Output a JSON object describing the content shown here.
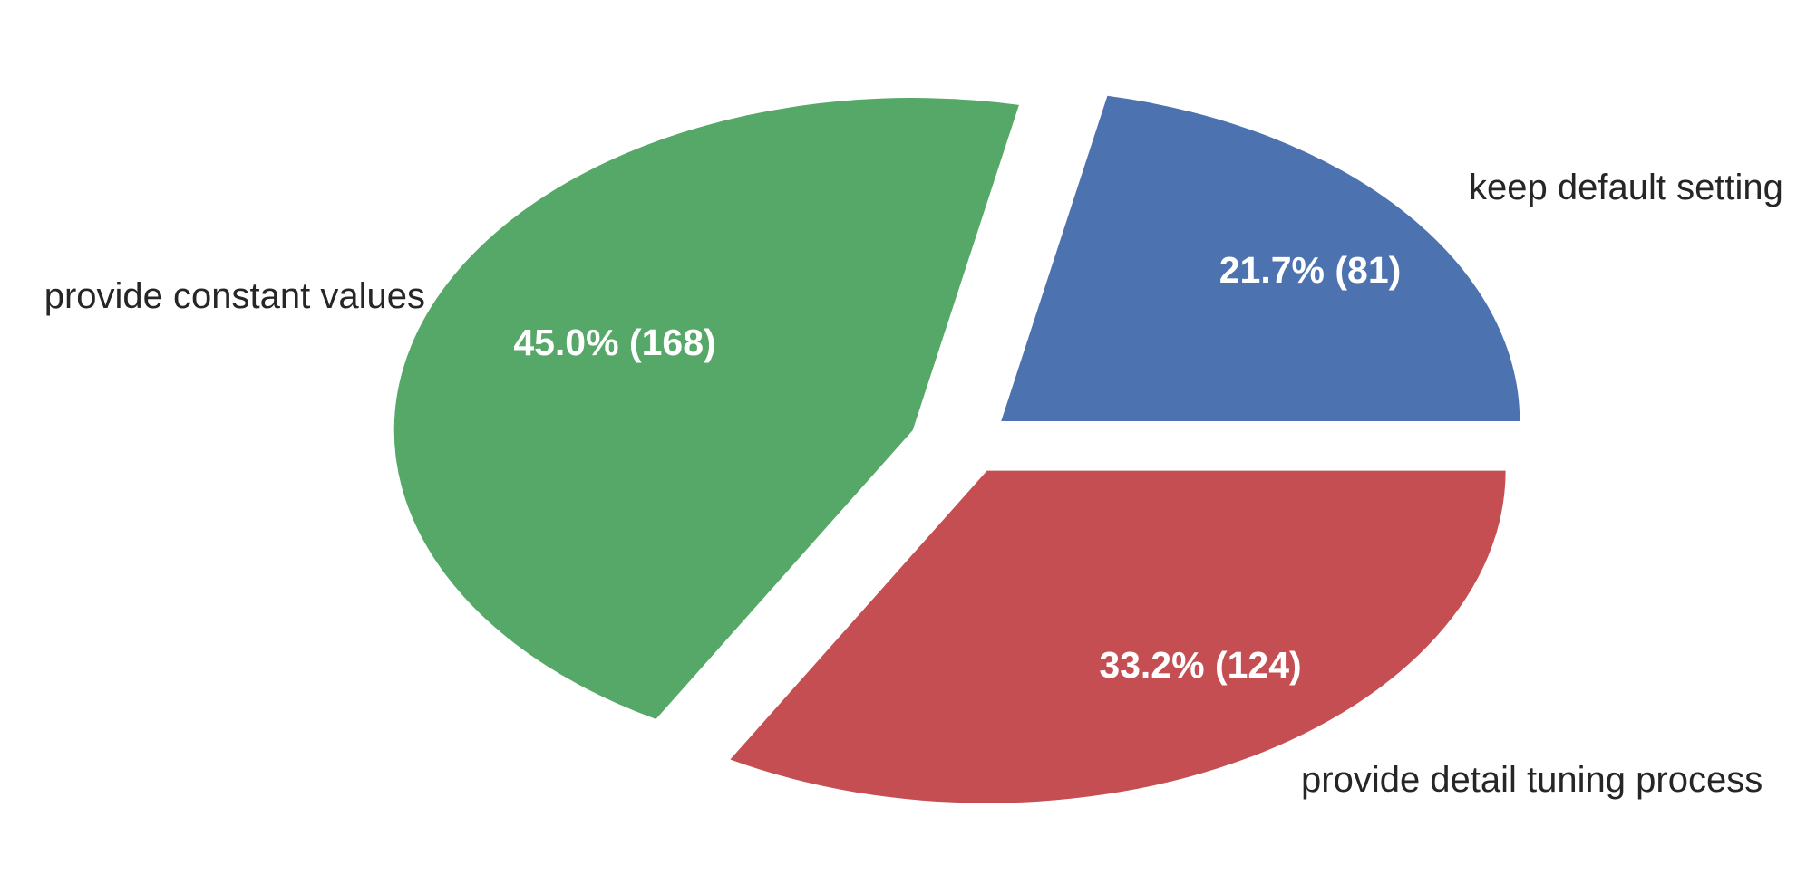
{
  "chart_data": {
    "type": "pie",
    "title": "",
    "legend": "none",
    "slices": [
      {
        "label": "keep default setting",
        "value": 81,
        "percent_label": "21.7% (81)",
        "color": "#4c72b0",
        "exploded": true
      },
      {
        "label": "provide constant values",
        "value": 168,
        "percent_label": "45.0% (168)",
        "color": "#55a868",
        "exploded": true
      },
      {
        "label": "provide detail tuning process",
        "value": 124,
        "percent_label": "33.2% (124)",
        "color": "#c44e52",
        "exploded": true
      }
    ]
  }
}
